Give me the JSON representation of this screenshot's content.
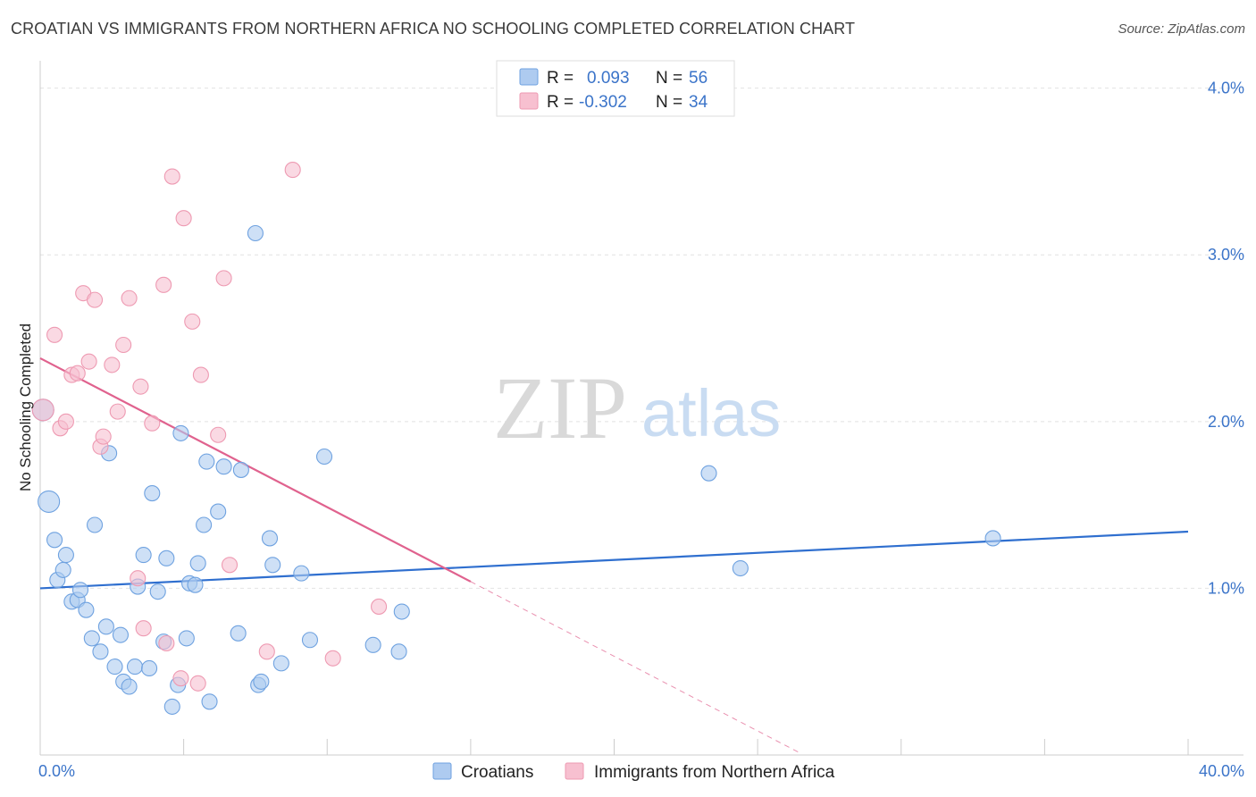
{
  "header": {
    "title": "CROATIAN VS IMMIGRANTS FROM NORTHERN AFRICA NO SCHOOLING COMPLETED CORRELATION CHART",
    "source": "Source: ZipAtlas.com"
  },
  "watermark": {
    "zip": "ZIP",
    "atlas": "atlas"
  },
  "legend_top": {
    "rows": [
      {
        "r_label": "R =",
        "r_value": "0.093",
        "n_label": "N =",
        "n_value": "56",
        "color": "#aecbf0"
      },
      {
        "r_label": "R =",
        "r_value": "-0.302",
        "n_label": "N =",
        "n_value": "34",
        "color": "#f7c0d0"
      }
    ]
  },
  "legend_bottom": {
    "items": [
      {
        "label": "Croatians",
        "color": "#aecbf0"
      },
      {
        "label": "Immigrants from Northern Africa",
        "color": "#f7c0d0"
      }
    ]
  },
  "chart_data": {
    "type": "scatter",
    "title": "CROATIAN VS IMMIGRANTS FROM NORTHERN AFRICA NO SCHOOLING COMPLETED CORRELATION CHART",
    "xlabel": "",
    "ylabel": "No Schooling Completed",
    "xlim": [
      0,
      40
    ],
    "ylim": [
      0,
      4.1
    ],
    "x_tick_labels": [
      "0.0%",
      "40.0%"
    ],
    "y_ticks": [
      1.0,
      2.0,
      3.0,
      4.0
    ],
    "y_tick_labels": [
      "1.0%",
      "2.0%",
      "3.0%",
      "4.0%"
    ],
    "grid": true,
    "series": [
      {
        "name": "Croatians",
        "color": "#6fa2e0",
        "fill": "#aecbf0",
        "trend": {
          "x": [
            0,
            40
          ],
          "y": [
            1.0,
            1.34
          ],
          "color": "#2f6fcf"
        },
        "points": [
          [
            0.1,
            2.07
          ],
          [
            0.3,
            1.52
          ],
          [
            0.5,
            1.29
          ],
          [
            0.6,
            1.05
          ],
          [
            0.8,
            1.11
          ],
          [
            0.9,
            1.2
          ],
          [
            1.1,
            0.92
          ],
          [
            1.3,
            0.93
          ],
          [
            1.4,
            0.99
          ],
          [
            1.6,
            0.87
          ],
          [
            1.8,
            0.7
          ],
          [
            1.9,
            1.38
          ],
          [
            2.1,
            0.62
          ],
          [
            2.3,
            0.77
          ],
          [
            2.4,
            1.81
          ],
          [
            2.6,
            0.53
          ],
          [
            2.8,
            0.72
          ],
          [
            2.9,
            0.44
          ],
          [
            3.1,
            0.41
          ],
          [
            3.3,
            0.53
          ],
          [
            3.4,
            1.01
          ],
          [
            3.6,
            1.2
          ],
          [
            3.8,
            0.52
          ],
          [
            3.9,
            1.57
          ],
          [
            4.1,
            0.98
          ],
          [
            4.3,
            0.68
          ],
          [
            4.4,
            1.18
          ],
          [
            4.6,
            0.29
          ],
          [
            4.8,
            0.42
          ],
          [
            4.9,
            1.93
          ],
          [
            5.1,
            0.7
          ],
          [
            5.2,
            1.03
          ],
          [
            5.4,
            1.02
          ],
          [
            5.5,
            1.15
          ],
          [
            5.7,
            1.38
          ],
          [
            5.8,
            1.76
          ],
          [
            5.9,
            0.32
          ],
          [
            6.2,
            1.46
          ],
          [
            6.4,
            1.73
          ],
          [
            6.9,
            0.73
          ],
          [
            7.0,
            1.71
          ],
          [
            7.5,
            3.13
          ],
          [
            7.6,
            0.42
          ],
          [
            7.7,
            0.44
          ],
          [
            8.0,
            1.3
          ],
          [
            8.1,
            1.14
          ],
          [
            8.4,
            0.55
          ],
          [
            9.1,
            1.09
          ],
          [
            9.4,
            0.69
          ],
          [
            9.9,
            1.79
          ],
          [
            11.6,
            0.66
          ],
          [
            12.5,
            0.62
          ],
          [
            12.6,
            0.86
          ],
          [
            23.3,
            1.69
          ],
          [
            24.4,
            1.12
          ],
          [
            33.2,
            1.3
          ]
        ]
      },
      {
        "name": "Immigrants from Northern Africa",
        "color": "#ee9ab2",
        "fill": "#f7c0d0",
        "trend": {
          "x": [
            0,
            15
          ],
          "y": [
            2.38,
            1.04
          ],
          "color": "#e0628e"
        },
        "trend_dashed": {
          "x": [
            15,
            26.5
          ],
          "y": [
            1.04,
            0.01
          ]
        },
        "points": [
          [
            0.1,
            2.07
          ],
          [
            0.5,
            2.52
          ],
          [
            0.7,
            1.96
          ],
          [
            0.9,
            2.0
          ],
          [
            1.1,
            2.28
          ],
          [
            1.3,
            2.29
          ],
          [
            1.5,
            2.77
          ],
          [
            1.7,
            2.36
          ],
          [
            1.9,
            2.73
          ],
          [
            2.1,
            1.85
          ],
          [
            2.2,
            1.91
          ],
          [
            2.5,
            2.34
          ],
          [
            2.7,
            2.06
          ],
          [
            2.9,
            2.46
          ],
          [
            3.1,
            2.74
          ],
          [
            3.4,
            1.06
          ],
          [
            3.5,
            2.21
          ],
          [
            3.6,
            0.76
          ],
          [
            3.9,
            1.99
          ],
          [
            4.3,
            2.82
          ],
          [
            4.4,
            0.67
          ],
          [
            4.6,
            3.47
          ],
          [
            4.9,
            0.46
          ],
          [
            5.0,
            3.22
          ],
          [
            5.3,
            2.6
          ],
          [
            5.5,
            0.43
          ],
          [
            5.6,
            2.28
          ],
          [
            6.2,
            1.92
          ],
          [
            6.4,
            2.86
          ],
          [
            6.6,
            1.14
          ],
          [
            7.9,
            0.62
          ],
          [
            8.8,
            3.51
          ],
          [
            10.2,
            0.58
          ],
          [
            11.8,
            0.89
          ]
        ]
      }
    ],
    "legend_position": "top-center"
  }
}
